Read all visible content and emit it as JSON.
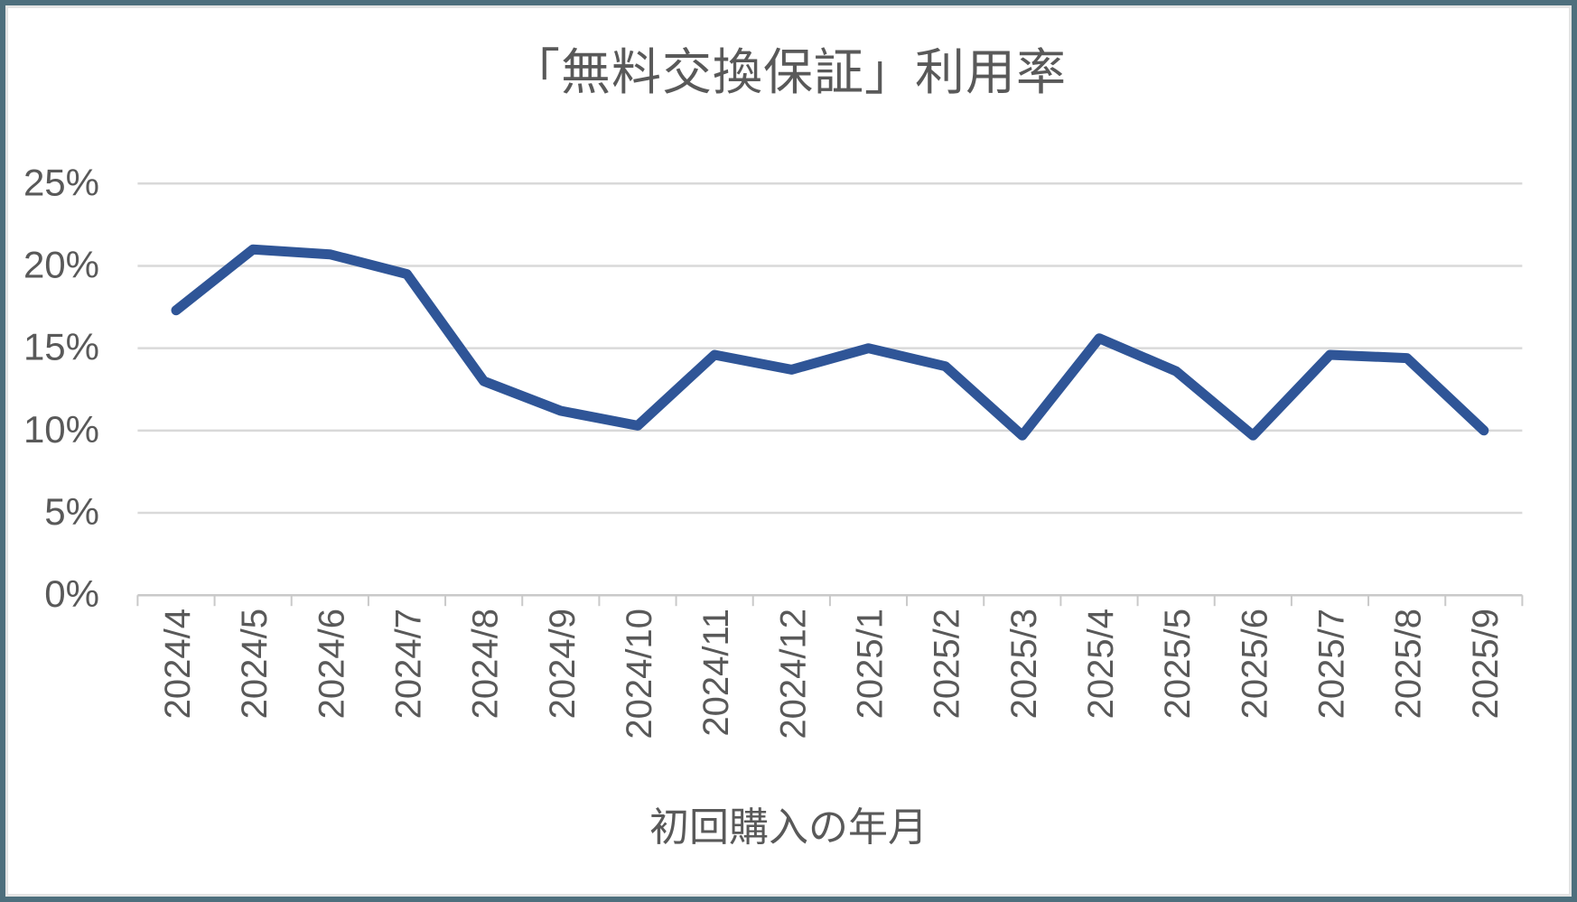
{
  "frame": {
    "border_color": "#4E6F7D",
    "inner_border_color": "#E4E4E4",
    "background": "#FFFFFF"
  },
  "chart_data": {
    "type": "line",
    "title": "「無料交換保証」利用率",
    "xlabel": "初回購入の年月",
    "ylabel": "",
    "categories": [
      "2024/4",
      "2024/5",
      "2024/6",
      "2024/7",
      "2024/8",
      "2024/9",
      "2024/10",
      "2024/11",
      "2024/12",
      "2025/1",
      "2025/2",
      "2025/3",
      "2025/4",
      "2025/5",
      "2025/6",
      "2025/7",
      "2025/8",
      "2025/9"
    ],
    "values": [
      17.3,
      21.0,
      20.7,
      19.5,
      13.0,
      11.2,
      10.3,
      14.6,
      13.7,
      15.0,
      13.9,
      9.7,
      15.6,
      13.6,
      9.7,
      14.6,
      14.4,
      10.0
    ],
    "ylim": [
      0,
      25
    ],
    "ytick_values": [
      0,
      5,
      10,
      15,
      20,
      25
    ],
    "ytick_labels": [
      "0%",
      "5%",
      "10%",
      "15%",
      "20%",
      "25%"
    ],
    "grid": true,
    "legend": false,
    "line_color": "#2F5597",
    "line_width": 11,
    "text_color": "#595959",
    "gridline_color": "#D9D9D9",
    "axis_color": "#C9C9C9"
  }
}
